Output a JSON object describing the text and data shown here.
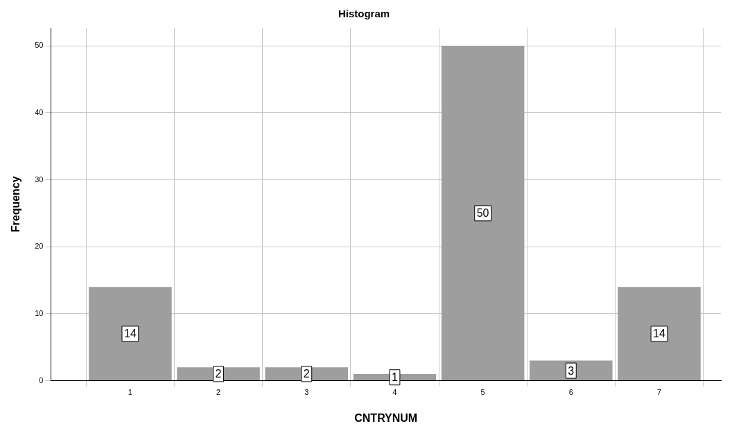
{
  "chart_data": {
    "type": "histogram",
    "title": "Histogram",
    "xlabel": "CNTRYNUM",
    "ylabel": "Frequency",
    "bins": [
      0.5,
      1.5,
      2.5,
      3.5,
      4.5,
      5.5,
      6.5,
      7.5
    ],
    "values": [
      14,
      2,
      2,
      1,
      50,
      3,
      14
    ],
    "color": "#9e9e9e",
    "xlim": [
      0.1,
      7.7
    ],
    "xticks": [
      1,
      2,
      3,
      4,
      5,
      6,
      7
    ],
    "ylim": [
      0,
      52.7
    ],
    "yticks": [
      0,
      10,
      20,
      30,
      40,
      50
    ],
    "grid": true,
    "legend": false,
    "data_labels": true
  }
}
